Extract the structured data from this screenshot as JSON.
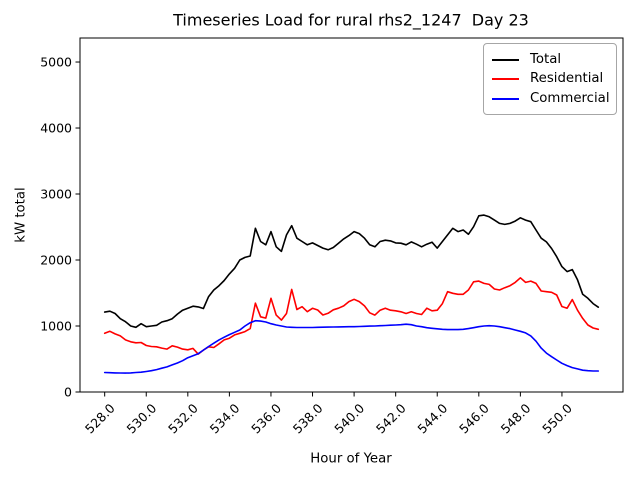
{
  "figure": {
    "title": "Timeseries Load for rural rhs2_1247  Day 23",
    "xlabel": "Hour of Year",
    "ylabel": "kW total"
  },
  "chart_data": {
    "type": "line",
    "title": "Timeseries Load for rural rhs2_1247  Day 23",
    "xlabel": "Hour of Year",
    "ylabel": "kW total",
    "grid": false,
    "xlim": [
      526.8125,
      552.9375
    ],
    "ylim": [
      0,
      5364
    ],
    "x_ticks": [
      528.0,
      530.0,
      532.0,
      534.0,
      536.0,
      538.0,
      540.0,
      542.0,
      544.0,
      546.0,
      548.0,
      550.0
    ],
    "x_tick_labels": [
      "528.0",
      "530.0",
      "532.0",
      "534.0",
      "536.0",
      "538.0",
      "540.0",
      "542.0",
      "544.0",
      "546.0",
      "548.0",
      "550.0"
    ],
    "x_tick_rotation_deg": 45,
    "y_ticks": [
      0,
      1000,
      2000,
      3000,
      4000,
      5000
    ],
    "y_tick_labels": [
      "0",
      "1000",
      "2000",
      "3000",
      "4000",
      "5000"
    ],
    "legend": {
      "position": "upper right",
      "entries": [
        {
          "label": "Total",
          "color": "#000000"
        },
        {
          "label": "Residential",
          "color": "#ff0000"
        },
        {
          "label": "Commercial",
          "color": "#0000ff"
        }
      ]
    },
    "x_start": 528.0,
    "x_step": 0.25,
    "n_points": 96,
    "x": [
      528.0,
      528.25,
      528.5,
      528.75,
      529.0,
      529.25,
      529.5,
      529.75,
      530.0,
      530.25,
      530.5,
      530.75,
      531.0,
      531.25,
      531.5,
      531.75,
      532.0,
      532.25,
      532.5,
      532.75,
      533.0,
      533.25,
      533.5,
      533.75,
      534.0,
      534.25,
      534.5,
      534.75,
      535.0,
      535.25,
      535.5,
      535.75,
      536.0,
      536.25,
      536.5,
      536.75,
      537.0,
      537.25,
      537.5,
      537.75,
      538.0,
      538.25,
      538.5,
      538.75,
      539.0,
      539.25,
      539.5,
      539.75,
      540.0,
      540.25,
      540.5,
      540.75,
      541.0,
      541.25,
      541.5,
      541.75,
      542.0,
      542.25,
      542.5,
      542.75,
      543.0,
      543.25,
      543.5,
      543.75,
      544.0,
      544.25,
      544.5,
      544.75,
      545.0,
      545.25,
      545.5,
      545.75,
      546.0,
      546.25,
      546.5,
      546.75,
      547.0,
      547.25,
      547.5,
      547.75,
      548.0,
      548.25,
      548.5,
      548.75,
      549.0,
      549.25,
      549.5,
      549.75,
      550.0,
      550.25,
      550.5,
      550.75,
      551.0,
      551.25,
      551.5,
      551.75
    ],
    "series": [
      {
        "name": "Total",
        "color": "#000000",
        "values": [
          1210,
          1225,
          1190,
          1110,
          1065,
          1000,
          980,
          1035,
          990,
          1000,
          1010,
          1060,
          1080,
          1110,
          1180,
          1240,
          1270,
          1300,
          1290,
          1265,
          1445,
          1545,
          1610,
          1690,
          1790,
          1875,
          2000,
          2040,
          2060,
          2480,
          2280,
          2230,
          2430,
          2200,
          2130,
          2380,
          2520,
          2330,
          2280,
          2230,
          2260,
          2220,
          2180,
          2155,
          2190,
          2255,
          2320,
          2370,
          2430,
          2400,
          2330,
          2230,
          2200,
          2280,
          2300,
          2290,
          2260,
          2255,
          2230,
          2275,
          2240,
          2200,
          2240,
          2270,
          2180,
          2280,
          2380,
          2480,
          2430,
          2455,
          2390,
          2505,
          2670,
          2680,
          2655,
          2605,
          2555,
          2540,
          2555,
          2590,
          2640,
          2605,
          2580,
          2455,
          2330,
          2275,
          2175,
          2050,
          1900,
          1825,
          1855,
          1700,
          1480,
          1420,
          1340,
          1285
        ]
      },
      {
        "name": "Residential",
        "color": "#ff0000",
        "values": [
          890,
          920,
          880,
          850,
          790,
          760,
          745,
          750,
          705,
          690,
          685,
          665,
          650,
          700,
          680,
          650,
          640,
          660,
          575,
          635,
          685,
          675,
          730,
          790,
          815,
          865,
          890,
          915,
          960,
          1345,
          1140,
          1120,
          1420,
          1165,
          1090,
          1190,
          1555,
          1250,
          1293,
          1217,
          1268,
          1242,
          1167,
          1192,
          1245,
          1270,
          1305,
          1370,
          1405,
          1370,
          1305,
          1200,
          1165,
          1240,
          1270,
          1240,
          1230,
          1215,
          1190,
          1215,
          1190,
          1175,
          1270,
          1230,
          1240,
          1340,
          1520,
          1495,
          1480,
          1480,
          1545,
          1670,
          1680,
          1645,
          1630,
          1560,
          1545,
          1580,
          1610,
          1660,
          1730,
          1660,
          1680,
          1645,
          1530,
          1520,
          1510,
          1470,
          1295,
          1270,
          1400,
          1240,
          1115,
          1015,
          970,
          950
        ]
      },
      {
        "name": "Commercial",
        "color": "#0000ff",
        "values": [
          295,
          292,
          290,
          288,
          287,
          290,
          295,
          300,
          310,
          323,
          340,
          360,
          380,
          410,
          440,
          475,
          520,
          550,
          580,
          635,
          690,
          740,
          790,
          830,
          870,
          905,
          940,
          1000,
          1050,
          1080,
          1075,
          1060,
          1035,
          1015,
          1000,
          985,
          980,
          978,
          977,
          977,
          978,
          980,
          982,
          983,
          985,
          986,
          988,
          989,
          990,
          992,
          995,
          998,
          1000,
          1004,
          1008,
          1012,
          1015,
          1020,
          1028,
          1020,
          1000,
          990,
          975,
          965,
          958,
          950,
          945,
          945,
          945,
          950,
          960,
          975,
          990,
          1000,
          1005,
          1000,
          990,
          975,
          960,
          940,
          920,
          895,
          850,
          770,
          665,
          590,
          535,
          485,
          435,
          400,
          370,
          350,
          330,
          322,
          318,
          318
        ]
      }
    ]
  }
}
